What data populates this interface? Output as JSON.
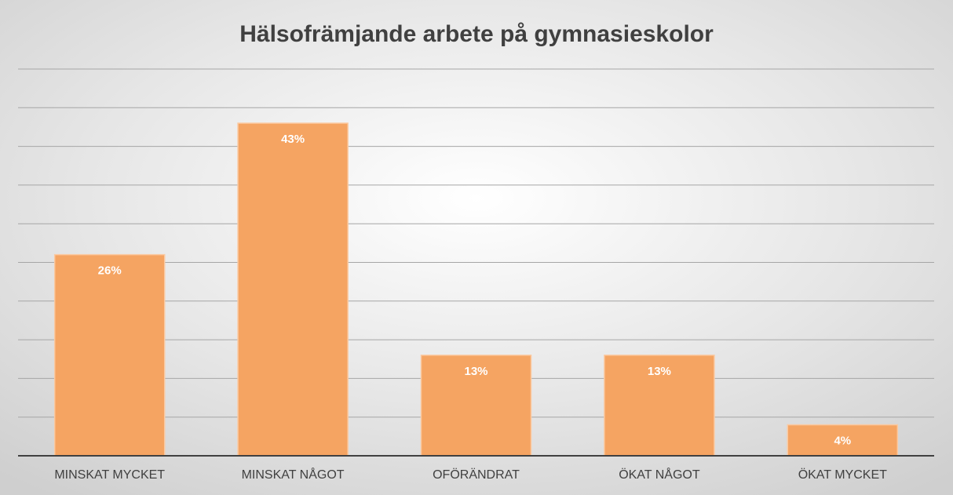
{
  "chart_data": {
    "type": "bar",
    "title": "Hälsofrämjande arbete på gymnasieskolor",
    "categories": [
      "MINSKAT MYCKET",
      "MINSKAT NÅGOT",
      "OFÖRÄNDRAT",
      "ÖKAT NÅGOT",
      "ÖKAT MYCKET"
    ],
    "values": [
      26,
      43,
      13,
      13,
      4
    ],
    "value_labels": [
      "26%",
      "43%",
      "13%",
      "13%",
      "4%"
    ],
    "color": "#f5a462",
    "ylim": [
      0,
      50
    ],
    "yticks": [
      0,
      5,
      10,
      15,
      20,
      25,
      30,
      35,
      40,
      45,
      50
    ],
    "grid": true
  }
}
